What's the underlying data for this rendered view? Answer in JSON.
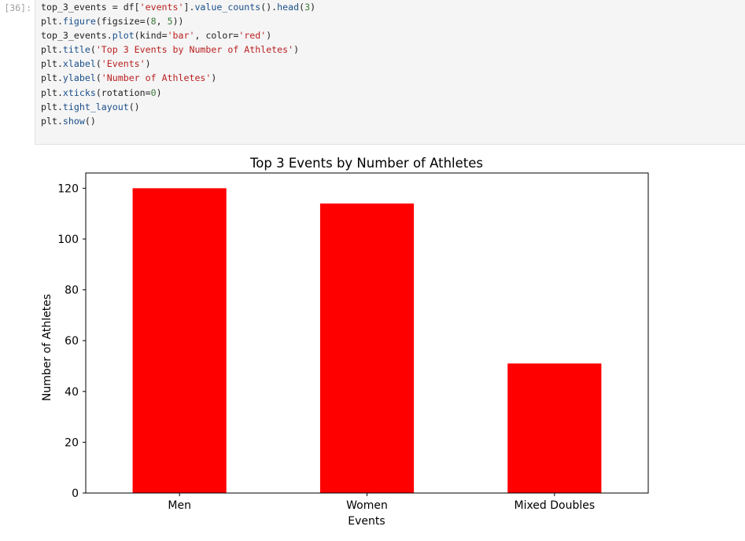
{
  "cell": {
    "prompt": "[36]:",
    "code_lines": [
      [
        {
          "t": "top_3_events = df[",
          "c": "p"
        },
        {
          "t": "'events'",
          "c": "s"
        },
        {
          "t": "].",
          "c": "p"
        },
        {
          "t": "value_counts",
          "c": "f"
        },
        {
          "t": "().",
          "c": "p"
        },
        {
          "t": "head",
          "c": "f"
        },
        {
          "t": "(",
          "c": "p"
        },
        {
          "t": "3",
          "c": "n"
        },
        {
          "t": ")",
          "c": "p"
        }
      ],
      [
        {
          "t": "plt.",
          "c": "p"
        },
        {
          "t": "figure",
          "c": "f"
        },
        {
          "t": "(figsize=(",
          "c": "p"
        },
        {
          "t": "8",
          "c": "n"
        },
        {
          "t": ", ",
          "c": "p"
        },
        {
          "t": "5",
          "c": "n"
        },
        {
          "t": "))",
          "c": "p"
        }
      ],
      [
        {
          "t": "top_3_events.",
          "c": "p"
        },
        {
          "t": "plot",
          "c": "f"
        },
        {
          "t": "(kind=",
          "c": "p"
        },
        {
          "t": "'bar'",
          "c": "s"
        },
        {
          "t": ", color=",
          "c": "p"
        },
        {
          "t": "'red'",
          "c": "s"
        },
        {
          "t": ")",
          "c": "p"
        }
      ],
      [
        {
          "t": "plt.",
          "c": "p"
        },
        {
          "t": "title",
          "c": "f"
        },
        {
          "t": "(",
          "c": "p"
        },
        {
          "t": "'Top 3 Events by Number of Athletes'",
          "c": "s"
        },
        {
          "t": ")",
          "c": "p"
        }
      ],
      [
        {
          "t": "plt.",
          "c": "p"
        },
        {
          "t": "xlabel",
          "c": "f"
        },
        {
          "t": "(",
          "c": "p"
        },
        {
          "t": "'Events'",
          "c": "s"
        },
        {
          "t": ")",
          "c": "p"
        }
      ],
      [
        {
          "t": "plt.",
          "c": "p"
        },
        {
          "t": "ylabel",
          "c": "f"
        },
        {
          "t": "(",
          "c": "p"
        },
        {
          "t": "'Number of Athletes'",
          "c": "s"
        },
        {
          "t": ")",
          "c": "p"
        }
      ],
      [
        {
          "t": "plt.",
          "c": "p"
        },
        {
          "t": "xticks",
          "c": "f"
        },
        {
          "t": "(rotation=",
          "c": "p"
        },
        {
          "t": "0",
          "c": "n"
        },
        {
          "t": ")",
          "c": "p"
        }
      ],
      [
        {
          "t": "plt.",
          "c": "p"
        },
        {
          "t": "tight_layout",
          "c": "f"
        },
        {
          "t": "()",
          "c": "p"
        }
      ],
      [
        {
          "t": "plt.",
          "c": "p"
        },
        {
          "t": "show",
          "c": "f"
        },
        {
          "t": "()",
          "c": "p"
        }
      ]
    ]
  },
  "chart_data": {
    "type": "bar",
    "title": "Top 3 Events by Number of Athletes",
    "xlabel": "Events",
    "ylabel": "Number of Athletes",
    "categories": [
      "Men",
      "Women",
      "Mixed Doubles"
    ],
    "values": [
      120,
      114,
      51
    ],
    "ylim": [
      0,
      126
    ],
    "yticks": [
      0,
      20,
      40,
      60,
      80,
      100,
      120
    ],
    "color": "#ff0000",
    "grid": false,
    "legend": "none"
  }
}
